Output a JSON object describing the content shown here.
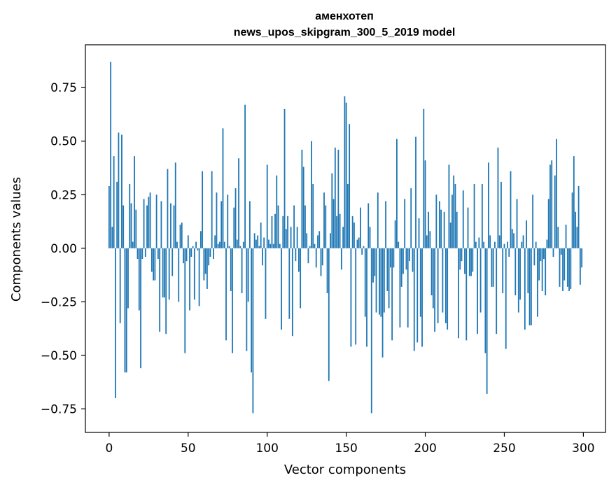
{
  "chart_data": {
    "type": "bar",
    "title": "аменхотеп",
    "subtitle": "news_upos_skipgram_300_5_2019 model",
    "xlabel": "Vector components",
    "ylabel": "Components values",
    "xlim": [
      -15,
      314
    ],
    "ylim": [
      -0.86,
      0.95
    ],
    "xticks": [
      0,
      50,
      100,
      150,
      200,
      250,
      300
    ],
    "yticks": [
      -0.75,
      -0.5,
      -0.25,
      0.0,
      0.25,
      0.5,
      0.75
    ],
    "ytick_labels": [
      "−0.75",
      "−0.50",
      "−0.25",
      "0.00",
      "0.25",
      "0.50",
      "0.75"
    ],
    "grid": false,
    "bar_color": "#1f77b4",
    "values": [
      0.29,
      0.87,
      0.1,
      0.43,
      -0.7,
      0.31,
      0.54,
      -0.35,
      0.53,
      0.2,
      -0.58,
      -0.58,
      -0.28,
      0.3,
      0.21,
      0.03,
      0.43,
      0.18,
      -0.05,
      -0.29,
      -0.56,
      -0.05,
      0.23,
      -0.04,
      0.2,
      0.24,
      0.26,
      -0.11,
      -0.15,
      -0.15,
      0.25,
      -0.05,
      -0.39,
      0.22,
      -0.23,
      -0.23,
      -0.4,
      0.37,
      -0.24,
      0.21,
      -0.13,
      0.2,
      0.4,
      0.03,
      -0.25,
      0.11,
      0.12,
      -0.07,
      -0.49,
      -0.06,
      0.06,
      -0.29,
      -0.04,
      0.01,
      -0.24,
      0.03,
      -0.01,
      -0.27,
      0.08,
      0.36,
      -0.15,
      -0.12,
      -0.19,
      -0.08,
      -0.04,
      0.36,
      -0.05,
      0.06,
      0.26,
      0.02,
      0.03,
      0.22,
      0.56,
      0.03,
      -0.43,
      0.25,
      0.01,
      -0.2,
      -0.49,
      0.19,
      0.28,
      0.04,
      0.42,
      0.01,
      -0.21,
      0.03,
      0.67,
      -0.48,
      -0.25,
      0.22,
      -0.58,
      -0.77,
      0.07,
      0.04,
      0.06,
      0.01,
      0.12,
      -0.08,
      0.05,
      -0.33,
      0.39,
      0.04,
      0.02,
      0.15,
      0.02,
      0.16,
      0.34,
      0.2,
      0.02,
      -0.38,
      0.15,
      0.65,
      0.09,
      0.15,
      -0.33,
      0.1,
      -0.41,
      0.2,
      -0.06,
      0.1,
      -0.11,
      -0.28,
      0.46,
      0.38,
      0.2,
      0.07,
      -0.07,
      0.01,
      0.5,
      0.3,
      0.02,
      -0.09,
      0.06,
      0.08,
      -0.13,
      -0.08,
      0.26,
      0.2,
      -0.21,
      -0.62,
      0.07,
      0.35,
      0.23,
      0.47,
      0.15,
      0.46,
      0.16,
      -0.1,
      0.1,
      0.71,
      0.68,
      0.3,
      0.58,
      -0.46,
      0.15,
      0.12,
      -0.45,
      0.04,
      0.05,
      0.19,
      -0.03,
      0.01,
      -0.32,
      -0.46,
      0.21,
      0.1,
      -0.77,
      -0.16,
      -0.13,
      -0.3,
      0.26,
      -0.31,
      -0.32,
      -0.51,
      -0.3,
      0.22,
      -0.2,
      -0.28,
      -0.09,
      -0.43,
      -0.09,
      0.13,
      0.51,
      0.03,
      -0.37,
      -0.18,
      -0.12,
      0.23,
      -0.1,
      -0.37,
      -0.06,
      0.28,
      -0.11,
      -0.48,
      0.52,
      -0.44,
      0.14,
      -0.32,
      -0.46,
      0.65,
      0.41,
      0.06,
      0.17,
      0.08,
      -0.22,
      -0.28,
      -0.39,
      0.25,
      -0.35,
      0.22,
      0.18,
      -0.3,
      0.17,
      -0.35,
      -0.38,
      0.39,
      0.12,
      0.25,
      0.34,
      0.3,
      0.17,
      -0.42,
      -0.1,
      -0.06,
      0.27,
      -0.12,
      -0.43,
      0.19,
      -0.13,
      -0.13,
      -0.11,
      0.3,
      0.03,
      -0.4,
      0.05,
      -0.3,
      0.3,
      0.03,
      -0.49,
      -0.68,
      0.4,
      0.06,
      -0.18,
      -0.18,
      0.03,
      -0.4,
      0.47,
      0.06,
      0.31,
      -0.21,
      0.02,
      -0.47,
      0.03,
      -0.04,
      0.36,
      0.09,
      0.07,
      -0.22,
      0.23,
      -0.3,
      -0.24,
      0.03,
      0.06,
      -0.38,
      0.13,
      -0.21,
      -0.36,
      -0.36,
      0.25,
      -0.08,
      0.03,
      -0.32,
      -0.15,
      -0.06,
      -0.2,
      -0.05,
      -0.22,
      0.04,
      0.23,
      0.39,
      0.41,
      -0.04,
      0.34,
      0.51,
      0.1,
      -0.18,
      -0.03,
      -0.2,
      -0.15,
      0.11,
      -0.18,
      -0.2,
      -0.19,
      0.26,
      0.43,
      0.17,
      0.1,
      0.29,
      -0.17,
      -0.09
    ]
  }
}
